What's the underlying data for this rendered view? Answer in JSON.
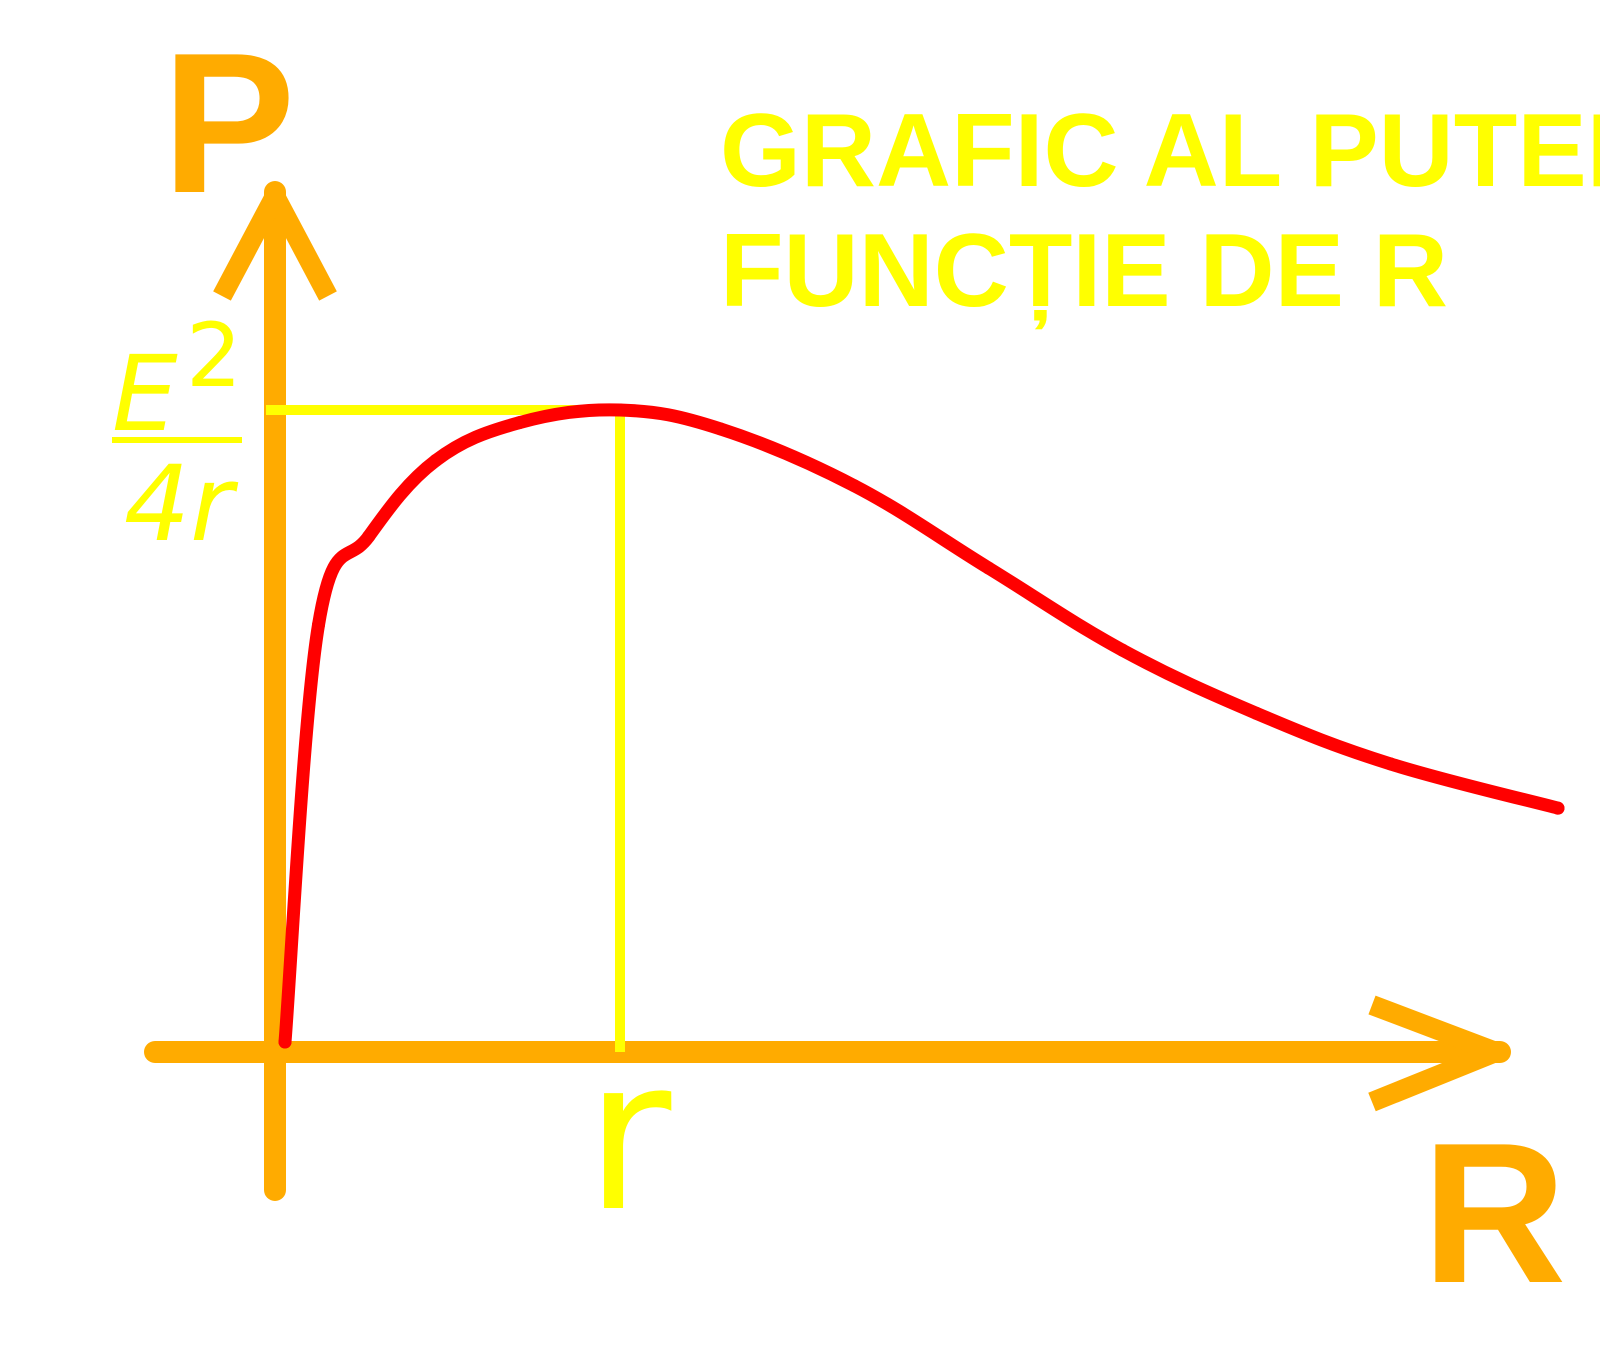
{
  "chart_data": {
    "type": "line",
    "title_lines": [
      "GRAFIC AL PUTERII ÎN",
      "FUNCȚIE DE R"
    ],
    "ylabel": "P",
    "xlabel": "R",
    "x_marker_label": "r",
    "y_marker_label": {
      "numerator": "E",
      "exponent": "2",
      "denominator": "4r"
    },
    "x_unit": "r",
    "y_unit": "E²/4r",
    "xlim": [
      0,
      3.8
    ],
    "ylim": [
      0,
      1.0
    ],
    "max_point": {
      "x": 1,
      "y": 1
    },
    "series": [
      {
        "values": [
          {
            "x": 0.0,
            "y": 0.0
          },
          {
            "x": 0.1,
            "y": 0.66
          },
          {
            "x": 0.25,
            "y": 0.8
          },
          {
            "x": 0.45,
            "y": 0.92
          },
          {
            "x": 0.7,
            "y": 0.98
          },
          {
            "x": 1.0,
            "y": 1.0
          },
          {
            "x": 1.3,
            "y": 0.97
          },
          {
            "x": 1.7,
            "y": 0.88
          },
          {
            "x": 2.1,
            "y": 0.75
          },
          {
            "x": 2.5,
            "y": 0.62
          },
          {
            "x": 2.9,
            "y": 0.52
          },
          {
            "x": 3.3,
            "y": 0.44
          },
          {
            "x": 3.8,
            "y": 0.37
          }
        ]
      }
    ],
    "colors": {
      "axes": "#ffab00",
      "curve": "#ff0000",
      "guides": "#ffff00",
      "title": "#ffff00"
    }
  }
}
